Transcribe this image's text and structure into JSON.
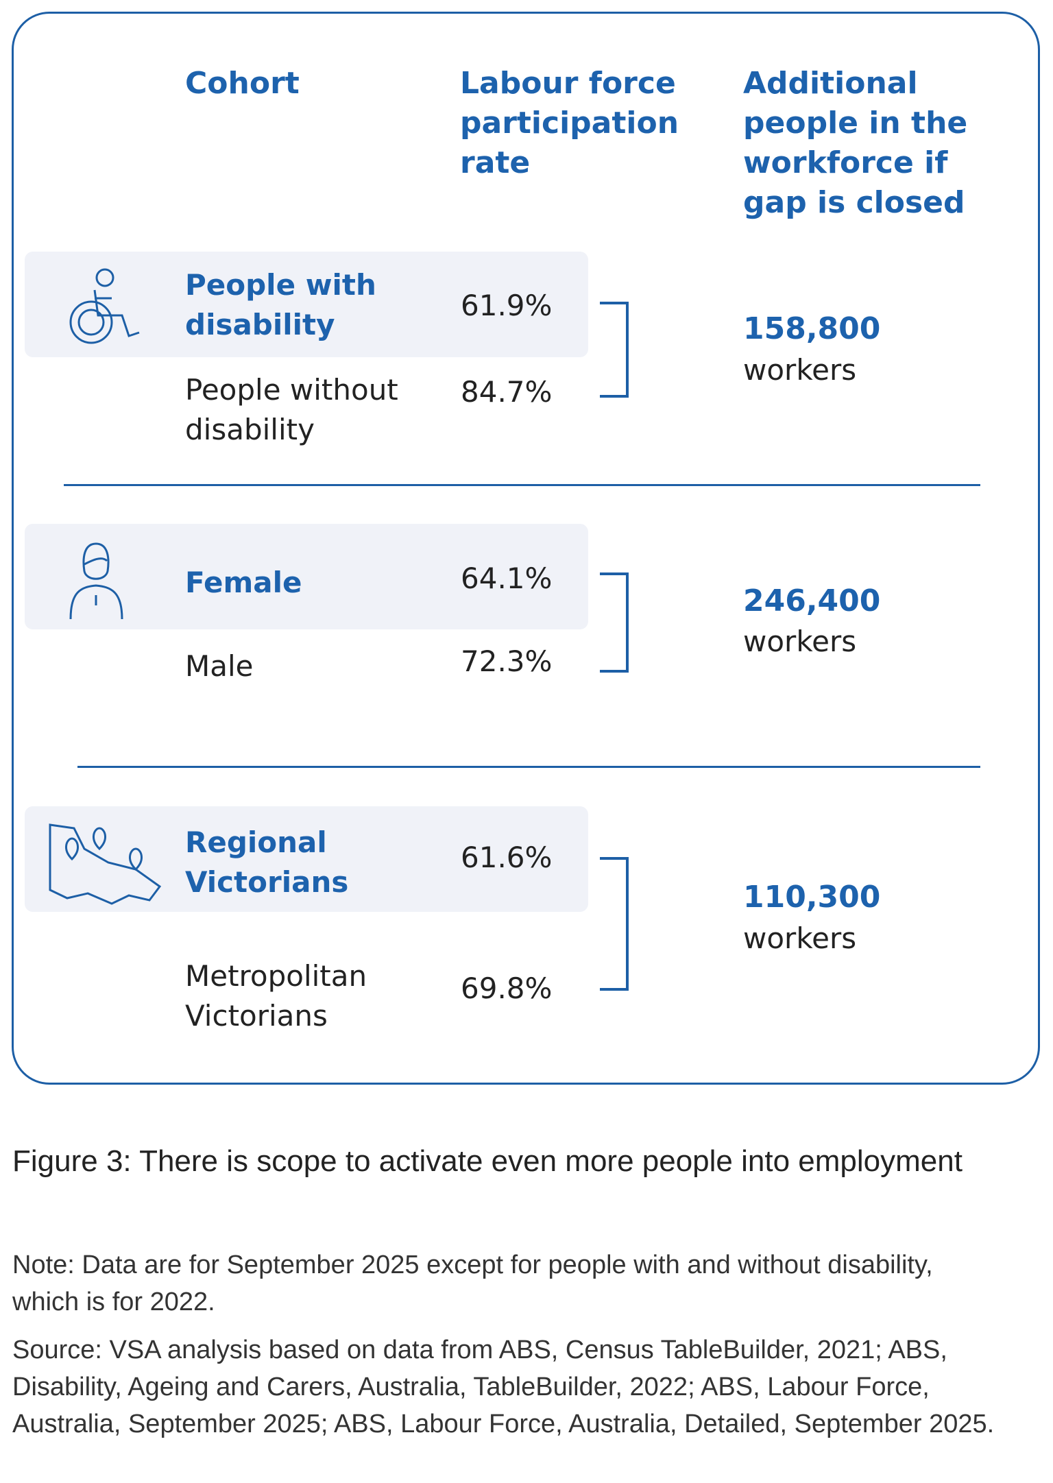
{
  "header": {
    "cohort": "Cohort",
    "rate": "Labour force participation rate",
    "additional": "Additional people in the workforce if gap is closed"
  },
  "groups": [
    {
      "rows": [
        {
          "cohort": "People with disability",
          "rate": "61.9%"
        },
        {
          "cohort": "People without disability",
          "rate": "84.7%"
        }
      ],
      "additional": {
        "number": "158,800",
        "unit": "workers"
      }
    },
    {
      "rows": [
        {
          "cohort": "Female",
          "rate": "64.1%"
        },
        {
          "cohort": "Male",
          "rate": "72.3%"
        }
      ],
      "additional": {
        "number": "246,400",
        "unit": "workers"
      }
    },
    {
      "rows": [
        {
          "cohort": "Regional Victorians",
          "rate": "61.6%"
        },
        {
          "cohort": "Metropolitan Victorians",
          "rate": "69.8%"
        }
      ],
      "additional": {
        "number": "110,300",
        "unit": "workers"
      }
    }
  ],
  "figure": {
    "caption": "Figure 3: There is scope to activate even more people into employment",
    "note": "Note: Data are for September 2025 except for people with and without disability, which is for 2022.",
    "source": "Source: VSA analysis based on data from ABS, Census TableBuilder, 2021; ABS, Disability, Ageing and Carers, Australia, TableBuilder, 2022; ABS, Labour Force, Australia, September 2025; ABS, Labour Force, Australia, Detailed, September 2025."
  }
}
